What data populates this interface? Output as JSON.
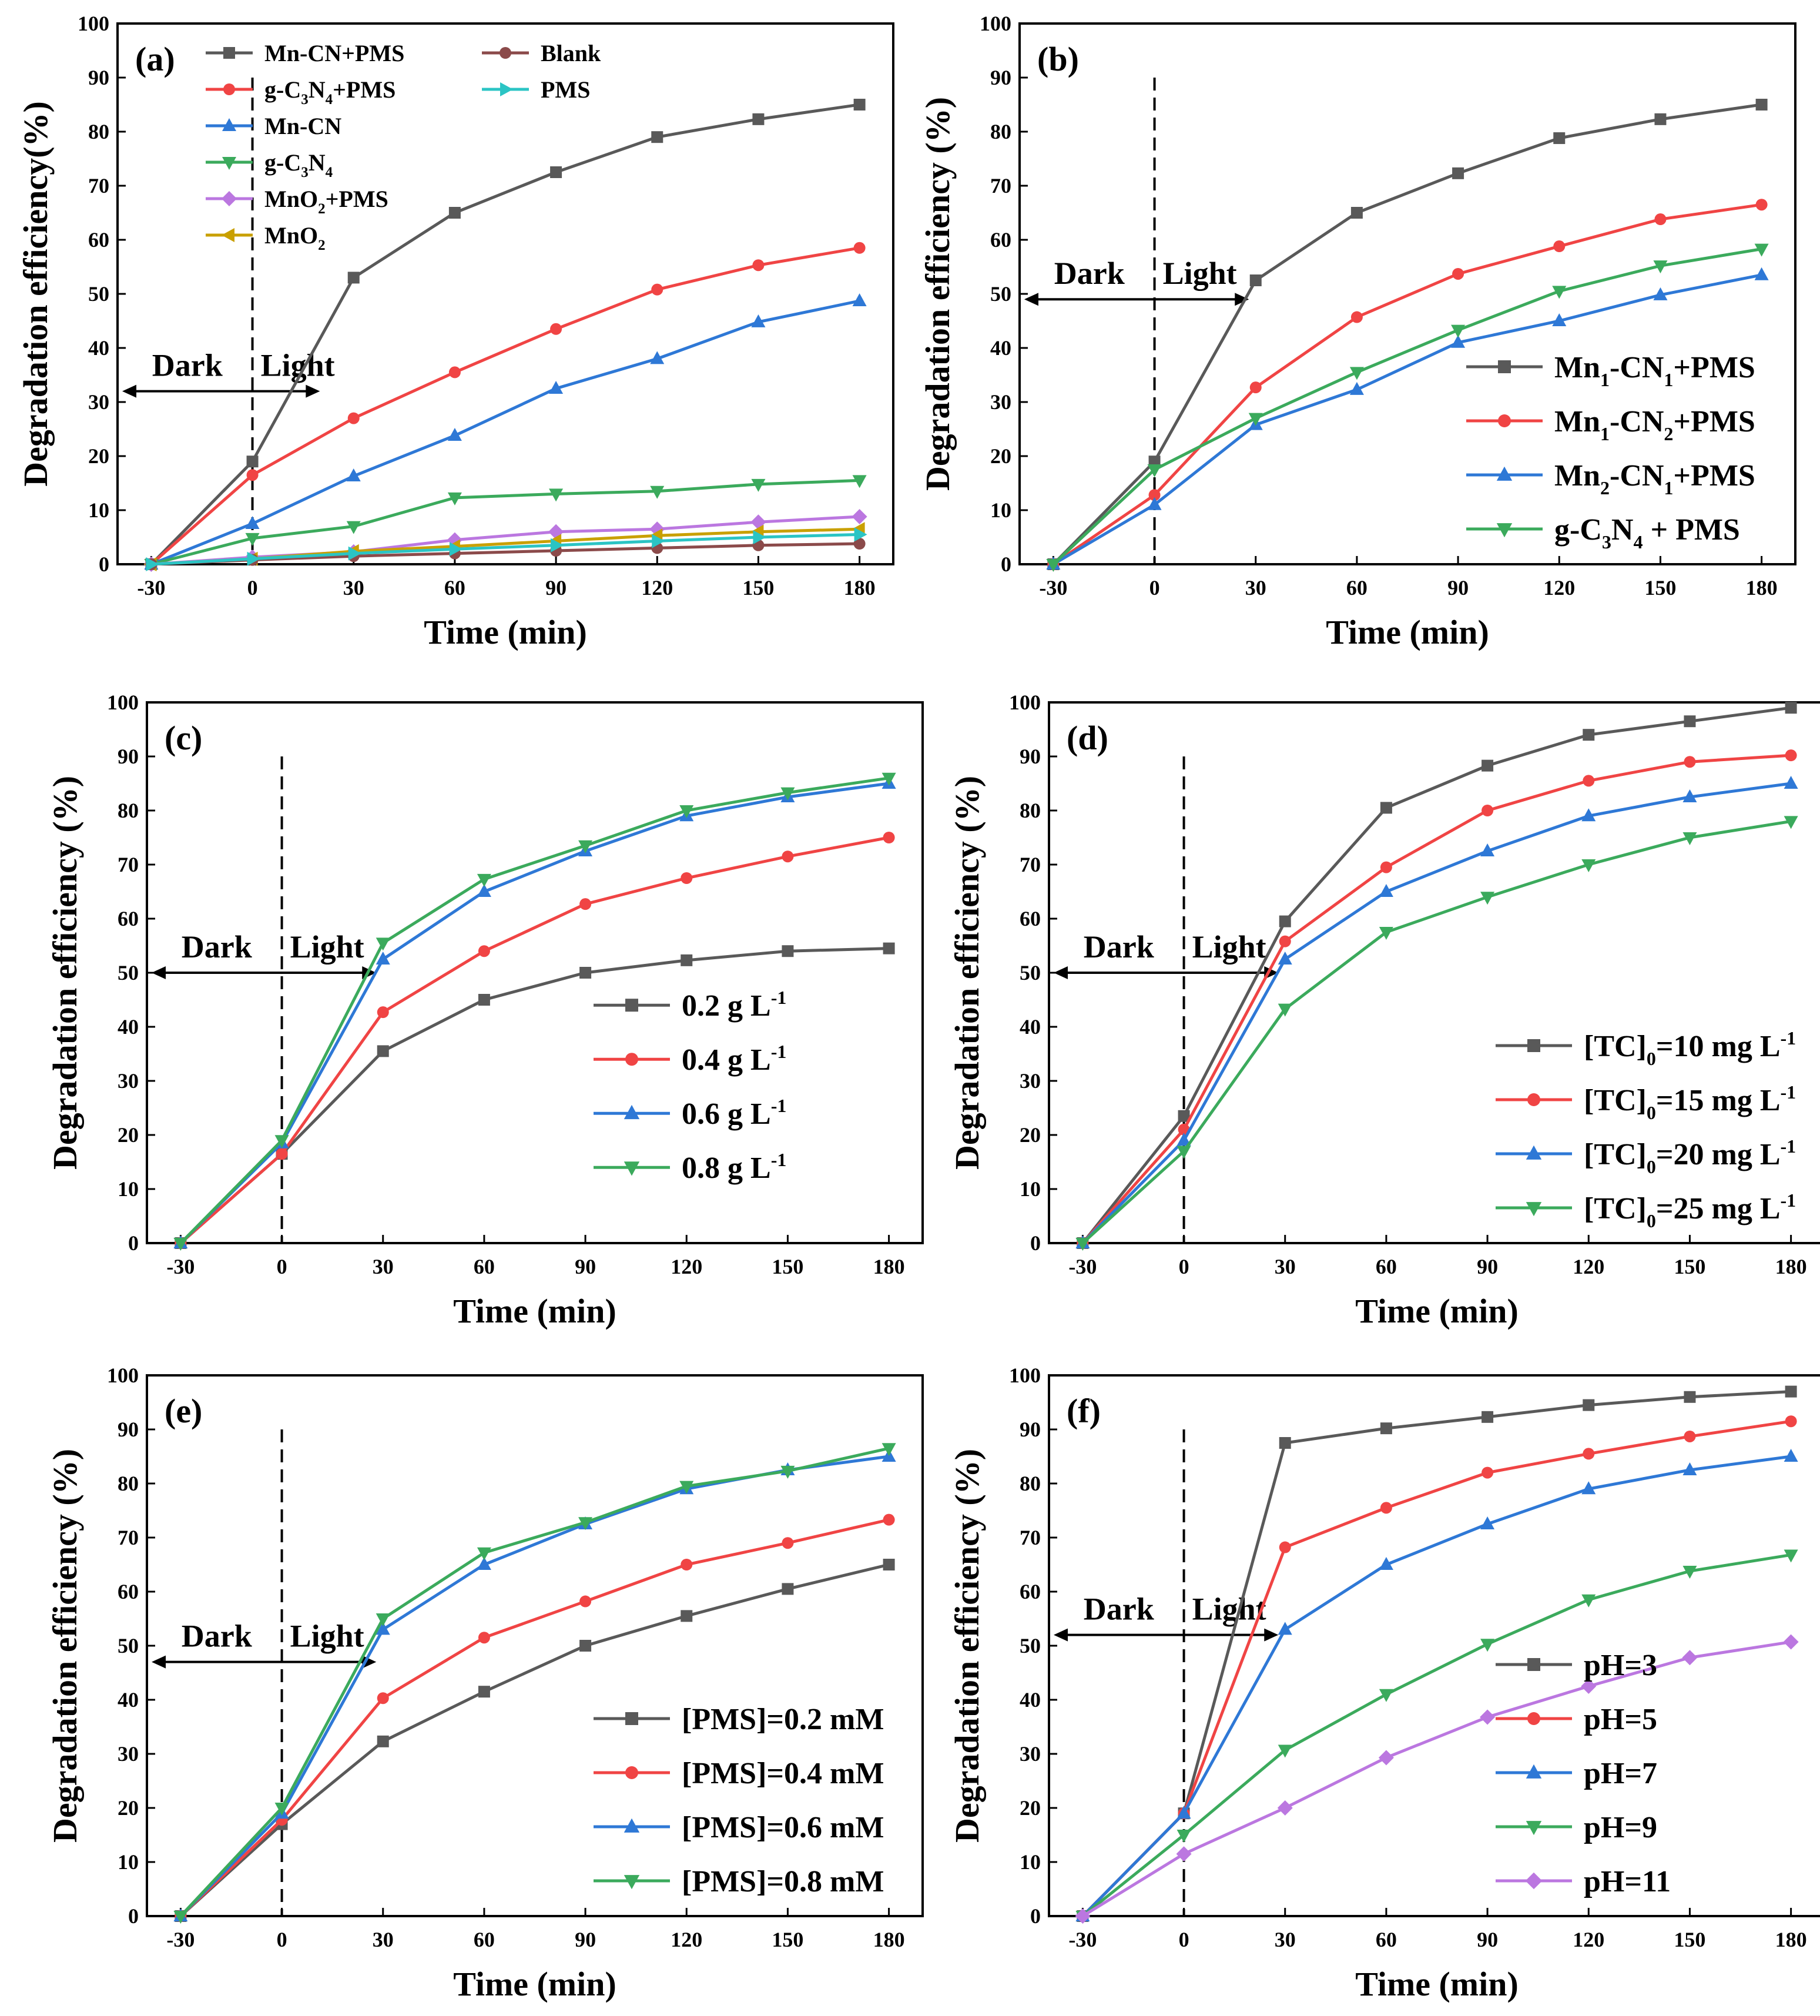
{
  "chart_data": [
    {
      "panel": "(a)",
      "type": "line",
      "xlabel": "Time (min)",
      "ylabel": "Degradation efficiency(%)",
      "x": [
        -30,
        0,
        30,
        60,
        90,
        120,
        150,
        180
      ],
      "xlim": [
        -40,
        190
      ],
      "ylim": [
        0,
        100
      ],
      "xticks": [
        -30,
        0,
        30,
        60,
        90,
        120,
        150,
        180
      ],
      "yticks": [
        0,
        10,
        20,
        30,
        40,
        50,
        60,
        70,
        80,
        90,
        100
      ],
      "annotations": {
        "dark": "Dark",
        "light": "Light",
        "divider_x": 0
      },
      "legend_columns": 2,
      "legend_small": true,
      "legend_position": "top-left",
      "series": [
        {
          "name": "Mn-CN+PMS",
          "base": "Mn-CN+PMS",
          "sub": "",
          "tail": "",
          "color": "#595959",
          "marker": "square",
          "values": [
            0,
            19,
            53,
            65,
            72.5,
            79,
            82.3,
            85
          ]
        },
        {
          "name": "g-C3N4+PMS",
          "base": "g-C",
          "sub": "3",
          "tail": "N",
          "sub2": "4",
          "tail2": "+PMS",
          "color": "#F04444",
          "marker": "circle",
          "values": [
            0,
            16.5,
            27,
            35.5,
            43.5,
            50.8,
            55.3,
            58.5
          ]
        },
        {
          "name": "Mn-CN",
          "base": "Mn-CN",
          "sub": "",
          "tail": "",
          "color": "#2E78D6",
          "marker": "triangle-up",
          "values": [
            0,
            7.5,
            16.3,
            23.8,
            32.5,
            38,
            44.8,
            48.7
          ]
        },
        {
          "name": "g-C3N4",
          "base": "g-C",
          "sub": "3",
          "tail": "N",
          "sub2": "4",
          "tail2": "",
          "color": "#3BAA5C",
          "marker": "triangle-down",
          "values": [
            0,
            4.8,
            7,
            12.3,
            13,
            13.5,
            14.8,
            15.5
          ]
        },
        {
          "name": "MnO2+PMS",
          "base": "MnO",
          "sub": "2",
          "tail": "+PMS",
          "color": "#BB77E0",
          "marker": "diamond",
          "values": [
            0,
            1.3,
            2.3,
            4.5,
            6,
            6.5,
            7.8,
            8.8
          ]
        },
        {
          "name": "MnO2",
          "base": "MnO",
          "sub": "2",
          "tail": "",
          "color": "#C9A000",
          "marker": "triangle-left",
          "values": [
            0,
            1,
            2.4,
            3.3,
            4.3,
            5.3,
            6,
            6.5
          ]
        },
        {
          "name": "Blank",
          "base": "Blank",
          "sub": "",
          "tail": "",
          "color": "#8B4A4A",
          "marker": "circle",
          "values": [
            0,
            0.8,
            1.5,
            2,
            2.5,
            3,
            3.5,
            3.8
          ]
        },
        {
          "name": "PMS",
          "base": "PMS",
          "sub": "",
          "tail": "",
          "color": "#2BC4C4",
          "marker": "triangle-right",
          "values": [
            0,
            1,
            2,
            2.8,
            3.5,
            4.3,
            5,
            5.5
          ]
        }
      ]
    },
    {
      "panel": "(b)",
      "type": "line",
      "xlabel": "Time (min)",
      "ylabel": "Degradation efficiency (%)",
      "x": [
        -30,
        0,
        30,
        60,
        90,
        120,
        150,
        180
      ],
      "xlim": [
        -40,
        190
      ],
      "ylim": [
        0,
        100
      ],
      "xticks": [
        -30,
        0,
        30,
        60,
        90,
        120,
        150,
        180
      ],
      "yticks": [
        0,
        10,
        20,
        30,
        40,
        50,
        60,
        70,
        80,
        90,
        100
      ],
      "annotations": {
        "dark": "Dark",
        "light": "Light",
        "divider_x": 0
      },
      "legend_columns": 1,
      "legend_position": "bottom-right",
      "series": [
        {
          "name": "Mn1-CN1+PMS",
          "base": "Mn",
          "sub": "1",
          "tail": "-CN",
          "sub2": "1",
          "tail2": "+PMS",
          "color": "#595959",
          "marker": "square",
          "values": [
            0,
            19,
            52.5,
            65,
            72.3,
            78.8,
            82.3,
            85
          ]
        },
        {
          "name": "Mn1-CN2+PMS",
          "base": "Mn",
          "sub": "1",
          "tail": "-CN",
          "sub2": "2",
          "tail2": "+PMS",
          "color": "#F04444",
          "marker": "circle",
          "values": [
            0,
            12.8,
            32.7,
            45.7,
            53.7,
            58.8,
            63.8,
            66.5
          ]
        },
        {
          "name": "Mn2-CN1+PMS",
          "base": "Mn",
          "sub": "2",
          "tail": "-CN",
          "sub2": "1",
          "tail2": "+PMS",
          "color": "#2E78D6",
          "marker": "triangle-up",
          "values": [
            0,
            11,
            25.8,
            32.3,
            41,
            45,
            49.8,
            53.5
          ]
        },
        {
          "name": "g-C3N4 + PMS",
          "base": "g-C",
          "sub": "3",
          "tail": "N",
          "sub2": "4",
          "tail2": " + PMS",
          "color": "#3BAA5C",
          "marker": "triangle-down",
          "values": [
            0,
            17.5,
            27,
            35.5,
            43.3,
            50.5,
            55.2,
            58.3
          ]
        }
      ]
    },
    {
      "panel": "(c)",
      "type": "line",
      "xlabel": "Time (min)",
      "ylabel": "Degradation efficiency  (%)",
      "x": [
        -30,
        0,
        30,
        60,
        90,
        120,
        150,
        180
      ],
      "xlim": [
        -40,
        190
      ],
      "ylim": [
        0,
        100
      ],
      "xticks": [
        -30,
        0,
        30,
        60,
        90,
        120,
        150,
        180
      ],
      "yticks": [
        0,
        10,
        20,
        30,
        40,
        50,
        60,
        70,
        80,
        90,
        100
      ],
      "annotations": {
        "dark": "Dark",
        "light": "Light",
        "divider_x": 0
      },
      "legend_columns": 1,
      "legend_position": "right",
      "series": [
        {
          "name": "0.2 g L-1",
          "base": "0.2 g L",
          "sup": "-1",
          "color": "#595959",
          "marker": "square",
          "values": [
            0,
            16.5,
            35.5,
            45,
            50,
            52.3,
            54,
            54.5
          ]
        },
        {
          "name": "0.4 g L-1",
          "base": "0.4 g L",
          "sup": "-1",
          "color": "#F04444",
          "marker": "circle",
          "values": [
            0,
            16.5,
            42.7,
            54,
            62.7,
            67.5,
            71.5,
            75
          ]
        },
        {
          "name": "0.6 g L-1",
          "base": "0.6 g L",
          "sup": "-1",
          "color": "#2E78D6",
          "marker": "triangle-up",
          "values": [
            0,
            18.5,
            52.5,
            65,
            72.5,
            79,
            82.5,
            85
          ]
        },
        {
          "name": "0.8 g L-1",
          "base": "0.8 g L",
          "sup": "-1",
          "color": "#3BAA5C",
          "marker": "triangle-down",
          "values": [
            0,
            19,
            55.5,
            67.3,
            73.5,
            80,
            83.3,
            86
          ]
        }
      ]
    },
    {
      "panel": "(d)",
      "type": "line",
      "xlabel": "Time (min)",
      "ylabel": "Degradation efficiency (%)",
      "x": [
        -30,
        0,
        30,
        60,
        90,
        120,
        150,
        180
      ],
      "xlim": [
        -40,
        190
      ],
      "ylim": [
        0,
        100
      ],
      "xticks": [
        -30,
        0,
        30,
        60,
        90,
        120,
        150,
        180
      ],
      "yticks": [
        0,
        10,
        20,
        30,
        40,
        50,
        60,
        70,
        80,
        90,
        100
      ],
      "annotations": {
        "dark": "Dark",
        "light": "Light",
        "divider_x": 0
      },
      "legend_columns": 1,
      "legend_position": "bottom-right",
      "series": [
        {
          "name": "[TC]0=10 mg L-1",
          "base": "[TC]",
          "sub": "0",
          "tail": "=10 mg L",
          "sup": "-1",
          "color": "#595959",
          "marker": "square",
          "values": [
            0,
            23.5,
            59.5,
            80.5,
            88.3,
            94,
            96.5,
            99
          ]
        },
        {
          "name": "[TC]0=15 mg L-1",
          "base": "[TC]",
          "sub": "0",
          "tail": "=15 mg L",
          "sup": "-1",
          "color": "#F04444",
          "marker": "circle",
          "values": [
            0,
            21,
            55.8,
            69.5,
            80,
            85.5,
            89,
            90.2
          ]
        },
        {
          "name": "[TC]0=20 mg L-1",
          "base": "[TC]",
          "sub": "0",
          "tail": "=20 mg L",
          "sup": "-1",
          "color": "#2E78D6",
          "marker": "triangle-up",
          "values": [
            0,
            19,
            52.5,
            65,
            72.5,
            79,
            82.5,
            85
          ]
        },
        {
          "name": "[TC]0=25 mg L-1",
          "base": "[TC]",
          "sub": "0",
          "tail": "=25 mg L",
          "sup": "-1",
          "color": "#3BAA5C",
          "marker": "triangle-down",
          "values": [
            0,
            17,
            43.3,
            57.5,
            64,
            70,
            75,
            78
          ]
        }
      ]
    },
    {
      "panel": "(e)",
      "type": "line",
      "xlabel": "Time (min)",
      "ylabel": "Degradation efficiency (%)",
      "x": [
        -30,
        0,
        30,
        60,
        90,
        120,
        150,
        180
      ],
      "xlim": [
        -40,
        190
      ],
      "ylim": [
        0,
        100
      ],
      "xticks": [
        -30,
        0,
        30,
        60,
        90,
        120,
        150,
        180
      ],
      "yticks": [
        0,
        10,
        20,
        30,
        40,
        50,
        60,
        70,
        80,
        90,
        100
      ],
      "annotations": {
        "dark": "Dark",
        "light": "Light",
        "divider_x": 0
      },
      "legend_columns": 1,
      "legend_position": "bottom-right",
      "series": [
        {
          "name": "[PMS]=0.2 mM",
          "base": "[PMS]=0.2 mM",
          "color": "#595959",
          "marker": "square",
          "values": [
            0,
            17,
            32.3,
            41.5,
            50,
            55.5,
            60.5,
            65
          ]
        },
        {
          "name": "[PMS]=0.4 mM",
          "base": "[PMS]=0.4 mM",
          "color": "#F04444",
          "marker": "circle",
          "values": [
            0,
            17.8,
            40.3,
            51.5,
            58.2,
            65,
            69,
            73.3
          ]
        },
        {
          "name": "[PMS]=0.6 mM",
          "base": "[PMS]=0.6 mM",
          "color": "#2E78D6",
          "marker": "triangle-up",
          "values": [
            0,
            19,
            53,
            65,
            72.5,
            79,
            82.5,
            85
          ]
        },
        {
          "name": "[PMS]=0.8 mM",
          "base": "[PMS]=0.8 mM",
          "color": "#3BAA5C",
          "marker": "triangle-down",
          "values": [
            0,
            20,
            55,
            67.2,
            72.8,
            79.5,
            82.3,
            86.5
          ]
        }
      ]
    },
    {
      "panel": "(f)",
      "type": "line",
      "xlabel": "Time (min)",
      "ylabel": "Degradation efficiency (%)",
      "x": [
        -30,
        0,
        30,
        60,
        90,
        120,
        150,
        180
      ],
      "xlim": [
        -40,
        190
      ],
      "ylim": [
        0,
        100
      ],
      "xticks": [
        -30,
        0,
        30,
        60,
        90,
        120,
        150,
        180
      ],
      "yticks": [
        0,
        10,
        20,
        30,
        40,
        50,
        60,
        70,
        80,
        90,
        100
      ],
      "annotations": {
        "dark": "Dark",
        "light": "Light",
        "divider_x": 0
      },
      "legend_columns": 1,
      "legend_position": "bottom-right",
      "series": [
        {
          "name": "pH=3",
          "base": "pH=3",
          "color": "#595959",
          "marker": "square",
          "values": [
            0,
            19,
            87.5,
            90.2,
            92.3,
            94.5,
            96,
            97
          ]
        },
        {
          "name": "pH=5",
          "base": "pH=5",
          "color": "#F04444",
          "marker": "circle",
          "values": [
            0,
            19,
            68.2,
            75.5,
            82,
            85.5,
            88.7,
            91.5
          ]
        },
        {
          "name": "pH=7",
          "base": "pH=7",
          "color": "#2E78D6",
          "marker": "triangle-up",
          "values": [
            0,
            19,
            53,
            65,
            72.5,
            79,
            82.5,
            85
          ]
        },
        {
          "name": "pH=9",
          "base": "pH=9",
          "color": "#3BAA5C",
          "marker": "triangle-down",
          "values": [
            0,
            15,
            30.7,
            41,
            50.3,
            58.5,
            63.8,
            66.8
          ]
        },
        {
          "name": "pH=11",
          "base": "pH=11",
          "color": "#BB77E0",
          "marker": "diamond",
          "values": [
            0,
            11.5,
            20,
            29.3,
            36.8,
            42.5,
            47.8,
            50.7
          ]
        }
      ]
    }
  ]
}
